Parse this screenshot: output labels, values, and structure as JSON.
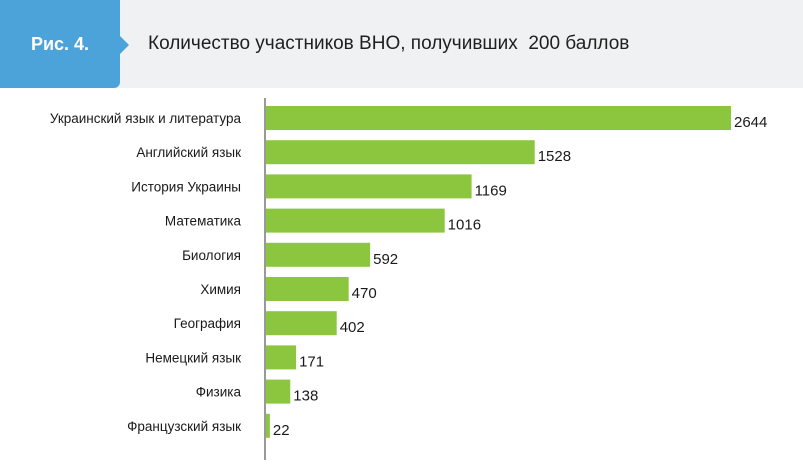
{
  "header": {
    "figure_label": "Рис. 4.",
    "title": "Количество участников ВНО, получивших  200 баллов"
  },
  "colors": {
    "bar": "#8cc63f",
    "accent": "#4ba3d9",
    "header_bg": "#f0f1f2"
  },
  "chart_data": {
    "type": "bar",
    "orientation": "horizontal",
    "categories": [
      "Украинский язык и литература",
      "Английский язык",
      "История Украины",
      "Математика",
      "Биология",
      "Химия",
      "География",
      "Немецкий язык",
      "Физика",
      "Французский язык"
    ],
    "values": [
      2644,
      1528,
      1169,
      1016,
      592,
      470,
      402,
      171,
      138,
      22
    ],
    "xlim": [
      0,
      2644
    ],
    "grid": false,
    "legend": "none"
  }
}
